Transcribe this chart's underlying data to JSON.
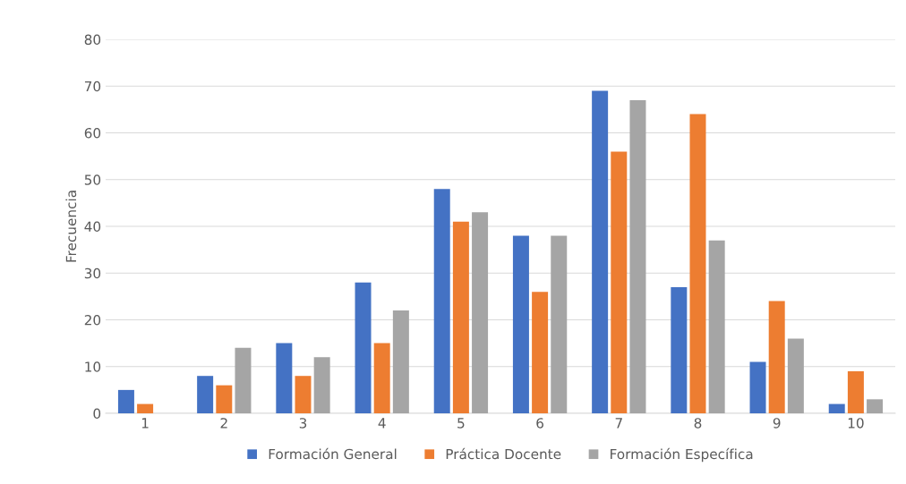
{
  "chart_data": {
    "type": "bar",
    "ylabel": "Frecuencia",
    "categories": [
      "1",
      "2",
      "3",
      "4",
      "5",
      "6",
      "7",
      "8",
      "9",
      "10"
    ],
    "series": [
      {
        "name": "Formación General",
        "color": "#4472c4",
        "values": [
          5,
          8,
          15,
          28,
          48,
          38,
          69,
          27,
          11,
          2
        ]
      },
      {
        "name": "Práctica Docente",
        "color": "#ed7d31",
        "values": [
          2,
          6,
          8,
          15,
          41,
          26,
          56,
          64,
          24,
          9
        ]
      },
      {
        "name": "Formación Específica",
        "color": "#a5a5a5",
        "values": [
          0,
          14,
          12,
          22,
          43,
          38,
          67,
          37,
          16,
          3
        ]
      }
    ],
    "ylim": [
      0,
      80
    ],
    "yticks": [
      0,
      10,
      20,
      30,
      40,
      50,
      60,
      70,
      80
    ],
    "grid": "y",
    "legend": "bottom"
  }
}
